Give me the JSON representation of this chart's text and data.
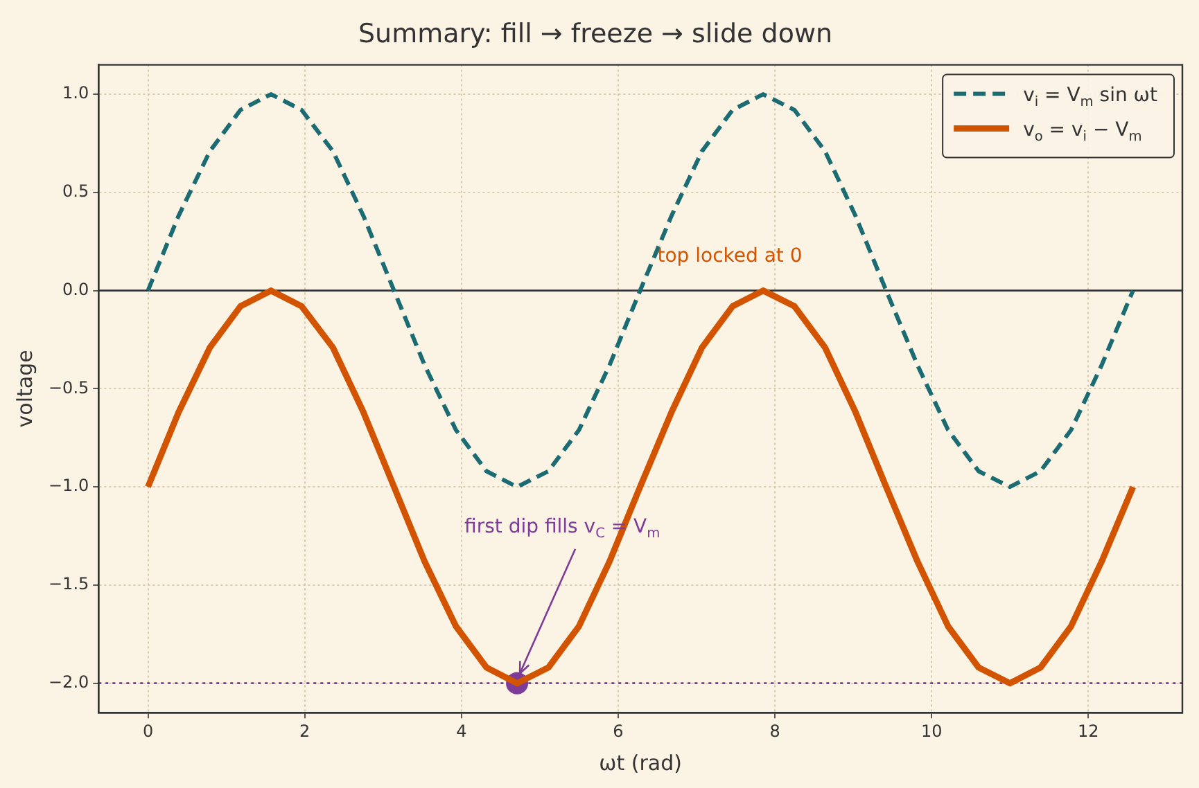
{
  "chart_data": {
    "type": "line",
    "title": "Summary: fill → freeze → slide down",
    "xlabel": "ωt (rad)",
    "ylabel": "voltage",
    "x": [
      0,
      0.39,
      0.79,
      1.18,
      1.57,
      1.96,
      2.36,
      2.75,
      3.14,
      3.53,
      3.93,
      4.32,
      4.71,
      5.11,
      5.5,
      5.89,
      6.28,
      6.68,
      7.07,
      7.46,
      7.85,
      8.25,
      8.64,
      9.03,
      9.42,
      9.82,
      10.21,
      10.6,
      11.0,
      11.39,
      11.78,
      12.17,
      12.57
    ],
    "series": [
      {
        "name": "v$_{i}$ = V$_{m}$ sin ωt",
        "color": "#1b6b73",
        "line_style": "dashed",
        "values": [
          0,
          0.38,
          0.71,
          0.92,
          1,
          0.92,
          0.71,
          0.38,
          0,
          -0.38,
          -0.71,
          -0.92,
          -1,
          -0.92,
          -0.71,
          -0.38,
          0,
          0.38,
          0.71,
          0.92,
          1,
          0.92,
          0.71,
          0.38,
          0,
          -0.38,
          -0.71,
          -0.92,
          -1,
          -0.92,
          -0.71,
          -0.38,
          0
        ]
      },
      {
        "name": "v$_{o}$ = v$_{i}$ − V$_{m}$",
        "color": "#d35400",
        "line_style": "solid",
        "values": [
          -1,
          -0.62,
          -0.29,
          -0.08,
          0,
          -0.08,
          -0.29,
          -0.62,
          -1,
          -1.38,
          -1.71,
          -1.92,
          -2,
          -1.92,
          -1.71,
          -1.38,
          -1,
          -0.62,
          -0.29,
          -0.08,
          0,
          -0.08,
          -0.29,
          -0.62,
          -1,
          -1.38,
          -1.71,
          -1.92,
          -2,
          -1.92,
          -1.71,
          -1.38,
          -1
        ]
      },
      {
        "type": "scatter",
        "color": "#7d3c98",
        "marker": "circle",
        "x": [
          4.71
        ],
        "values": [
          -2
        ]
      }
    ],
    "ref_lines": [
      {
        "axis": "y",
        "value": 0,
        "color": "#333333",
        "line_style": "solid"
      },
      {
        "axis": "y",
        "value": -2,
        "color": "#7d3c98",
        "line_style": "dotted"
      }
    ],
    "annotations": [
      {
        "text": "top locked at 0",
        "x": 6.5,
        "y": 0.12
      },
      {
        "text": "first dip fills v$_{C}$ = V$_{m}$",
        "x": 4.71,
        "y": -2
      }
    ],
    "xlim": [
      -0.63,
      13.2
    ],
    "xticks": [
      0,
      2,
      4,
      6,
      8,
      10,
      12
    ],
    "ylim": [
      -2.15,
      1.15
    ],
    "yticks": [
      {
        "value": -2,
        "label": "−2.0"
      },
      {
        "value": -1.5,
        "label": "−1.5"
      },
      {
        "value": -1,
        "label": "−1.0"
      },
      {
        "value": -0.5,
        "label": "−0.5"
      },
      {
        "value": 0,
        "label": "0.0"
      },
      {
        "value": 0.5,
        "label": "0.5"
      },
      {
        "value": 1,
        "label": "1.0"
      }
    ],
    "grid": true,
    "legend": "top right",
    "marker": "none"
  }
}
